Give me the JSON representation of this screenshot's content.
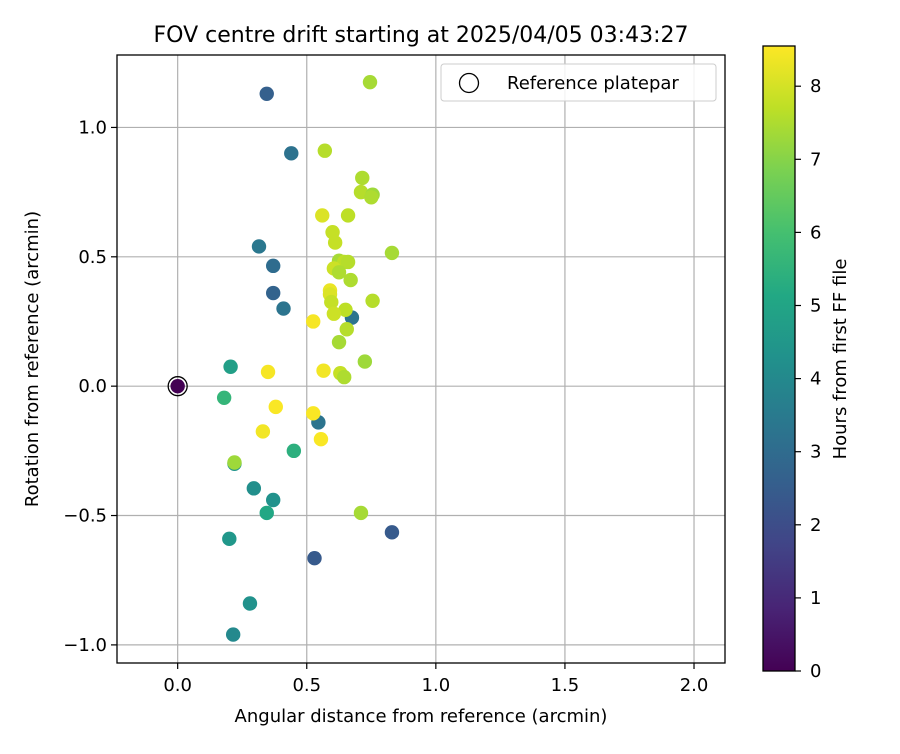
{
  "chart_data": {
    "type": "scatter",
    "title": "FOV centre drift starting at 2025/04/05 03:43:27",
    "xlabel": "Angular distance from reference (arcmin)",
    "ylabel": "Rotation from reference (arcmin)",
    "xlim": [
      -0.235,
      2.12
    ],
    "ylim": [
      -1.07,
      1.28
    ],
    "xticks": [
      0.0,
      0.5,
      1.0,
      1.5,
      2.0
    ],
    "xtick_labels": [
      "0.0",
      "0.5",
      "1.0",
      "1.5",
      "2.0"
    ],
    "yticks": [
      -1.0,
      -0.5,
      0.0,
      0.5,
      1.0
    ],
    "ytick_labels": [
      "−1.0",
      "−0.5",
      "0.0",
      "0.5",
      "1.0"
    ],
    "grid": true,
    "legend": {
      "placement": "top-right",
      "entries": [
        "Reference platepar"
      ]
    },
    "reference_point": {
      "x": 0.0,
      "y": 0.0,
      "hours": 0.0
    },
    "colorbar": {
      "label": "Hours from first FF file",
      "colormap": "viridis",
      "range": [
        0,
        8.55
      ],
      "ticks": [
        0,
        1,
        2,
        3,
        4,
        5,
        6,
        7,
        8
      ],
      "tick_labels": [
        "0",
        "1",
        "2",
        "3",
        "4",
        "5",
        "6",
        "7",
        "8"
      ]
    },
    "points": [
      {
        "x": 0.345,
        "y": 1.13,
        "h": 2.6
      },
      {
        "x": 0.44,
        "y": 0.9,
        "h": 3.2
      },
      {
        "x": 0.315,
        "y": 0.54,
        "h": 3.4
      },
      {
        "x": 0.37,
        "y": 0.465,
        "h": 3.0
      },
      {
        "x": 0.37,
        "y": 0.36,
        "h": 2.7
      },
      {
        "x": 0.41,
        "y": 0.3,
        "h": 3.3
      },
      {
        "x": 0.675,
        "y": 0.265,
        "h": 3.3
      },
      {
        "x": 0.205,
        "y": 0.075,
        "h": 4.8
      },
      {
        "x": 0.18,
        "y": -0.045,
        "h": 5.6
      },
      {
        "x": 0.545,
        "y": -0.14,
        "h": 3.3
      },
      {
        "x": 0.22,
        "y": -0.3,
        "h": 4.4
      },
      {
        "x": 0.22,
        "y": -0.295,
        "h": 7.3
      },
      {
        "x": 0.45,
        "y": -0.25,
        "h": 5.4
      },
      {
        "x": 0.295,
        "y": -0.395,
        "h": 4.2
      },
      {
        "x": 0.37,
        "y": -0.44,
        "h": 4.3
      },
      {
        "x": 0.345,
        "y": -0.49,
        "h": 5.1
      },
      {
        "x": 0.2,
        "y": -0.59,
        "h": 4.5
      },
      {
        "x": 0.53,
        "y": -0.665,
        "h": 2.4
      },
      {
        "x": 0.83,
        "y": -0.565,
        "h": 2.4
      },
      {
        "x": 0.28,
        "y": -0.84,
        "h": 4.3
      },
      {
        "x": 0.215,
        "y": -0.96,
        "h": 4.0
      },
      {
        "x": 0.745,
        "y": 1.175,
        "h": 7.4
      },
      {
        "x": 0.57,
        "y": 0.91,
        "h": 7.6
      },
      {
        "x": 0.715,
        "y": 0.805,
        "h": 7.5
      },
      {
        "x": 0.71,
        "y": 0.75,
        "h": 7.6
      },
      {
        "x": 0.755,
        "y": 0.74,
        "h": 7.3
      },
      {
        "x": 0.75,
        "y": 0.73,
        "h": 7.5
      },
      {
        "x": 0.56,
        "y": 0.66,
        "h": 8.1
      },
      {
        "x": 0.66,
        "y": 0.66,
        "h": 7.7
      },
      {
        "x": 0.6,
        "y": 0.595,
        "h": 7.8
      },
      {
        "x": 0.61,
        "y": 0.555,
        "h": 7.8
      },
      {
        "x": 0.83,
        "y": 0.515,
        "h": 7.4
      },
      {
        "x": 0.625,
        "y": 0.485,
        "h": 7.4
      },
      {
        "x": 0.645,
        "y": 0.48,
        "h": 7.7
      },
      {
        "x": 0.66,
        "y": 0.48,
        "h": 7.6
      },
      {
        "x": 0.605,
        "y": 0.455,
        "h": 7.9
      },
      {
        "x": 0.625,
        "y": 0.44,
        "h": 7.5
      },
      {
        "x": 0.67,
        "y": 0.41,
        "h": 7.5
      },
      {
        "x": 0.59,
        "y": 0.37,
        "h": 8.3
      },
      {
        "x": 0.59,
        "y": 0.355,
        "h": 8.1
      },
      {
        "x": 0.595,
        "y": 0.325,
        "h": 7.8
      },
      {
        "x": 0.755,
        "y": 0.33,
        "h": 7.6
      },
      {
        "x": 0.65,
        "y": 0.295,
        "h": 7.7
      },
      {
        "x": 0.605,
        "y": 0.28,
        "h": 7.9
      },
      {
        "x": 0.525,
        "y": 0.25,
        "h": 8.45
      },
      {
        "x": 0.655,
        "y": 0.22,
        "h": 7.6
      },
      {
        "x": 0.625,
        "y": 0.17,
        "h": 7.4
      },
      {
        "x": 0.725,
        "y": 0.095,
        "h": 7.3
      },
      {
        "x": 0.565,
        "y": 0.06,
        "h": 8.4
      },
      {
        "x": 0.63,
        "y": 0.05,
        "h": 7.8
      },
      {
        "x": 0.645,
        "y": 0.035,
        "h": 7.5
      },
      {
        "x": 0.35,
        "y": 0.055,
        "h": 8.45
      },
      {
        "x": 0.38,
        "y": -0.08,
        "h": 8.5
      },
      {
        "x": 0.525,
        "y": -0.105,
        "h": 8.5
      },
      {
        "x": 0.555,
        "y": -0.205,
        "h": 8.5
      },
      {
        "x": 0.33,
        "y": -0.175,
        "h": 8.4
      },
      {
        "x": 0.71,
        "y": -0.49,
        "h": 7.4
      }
    ]
  }
}
